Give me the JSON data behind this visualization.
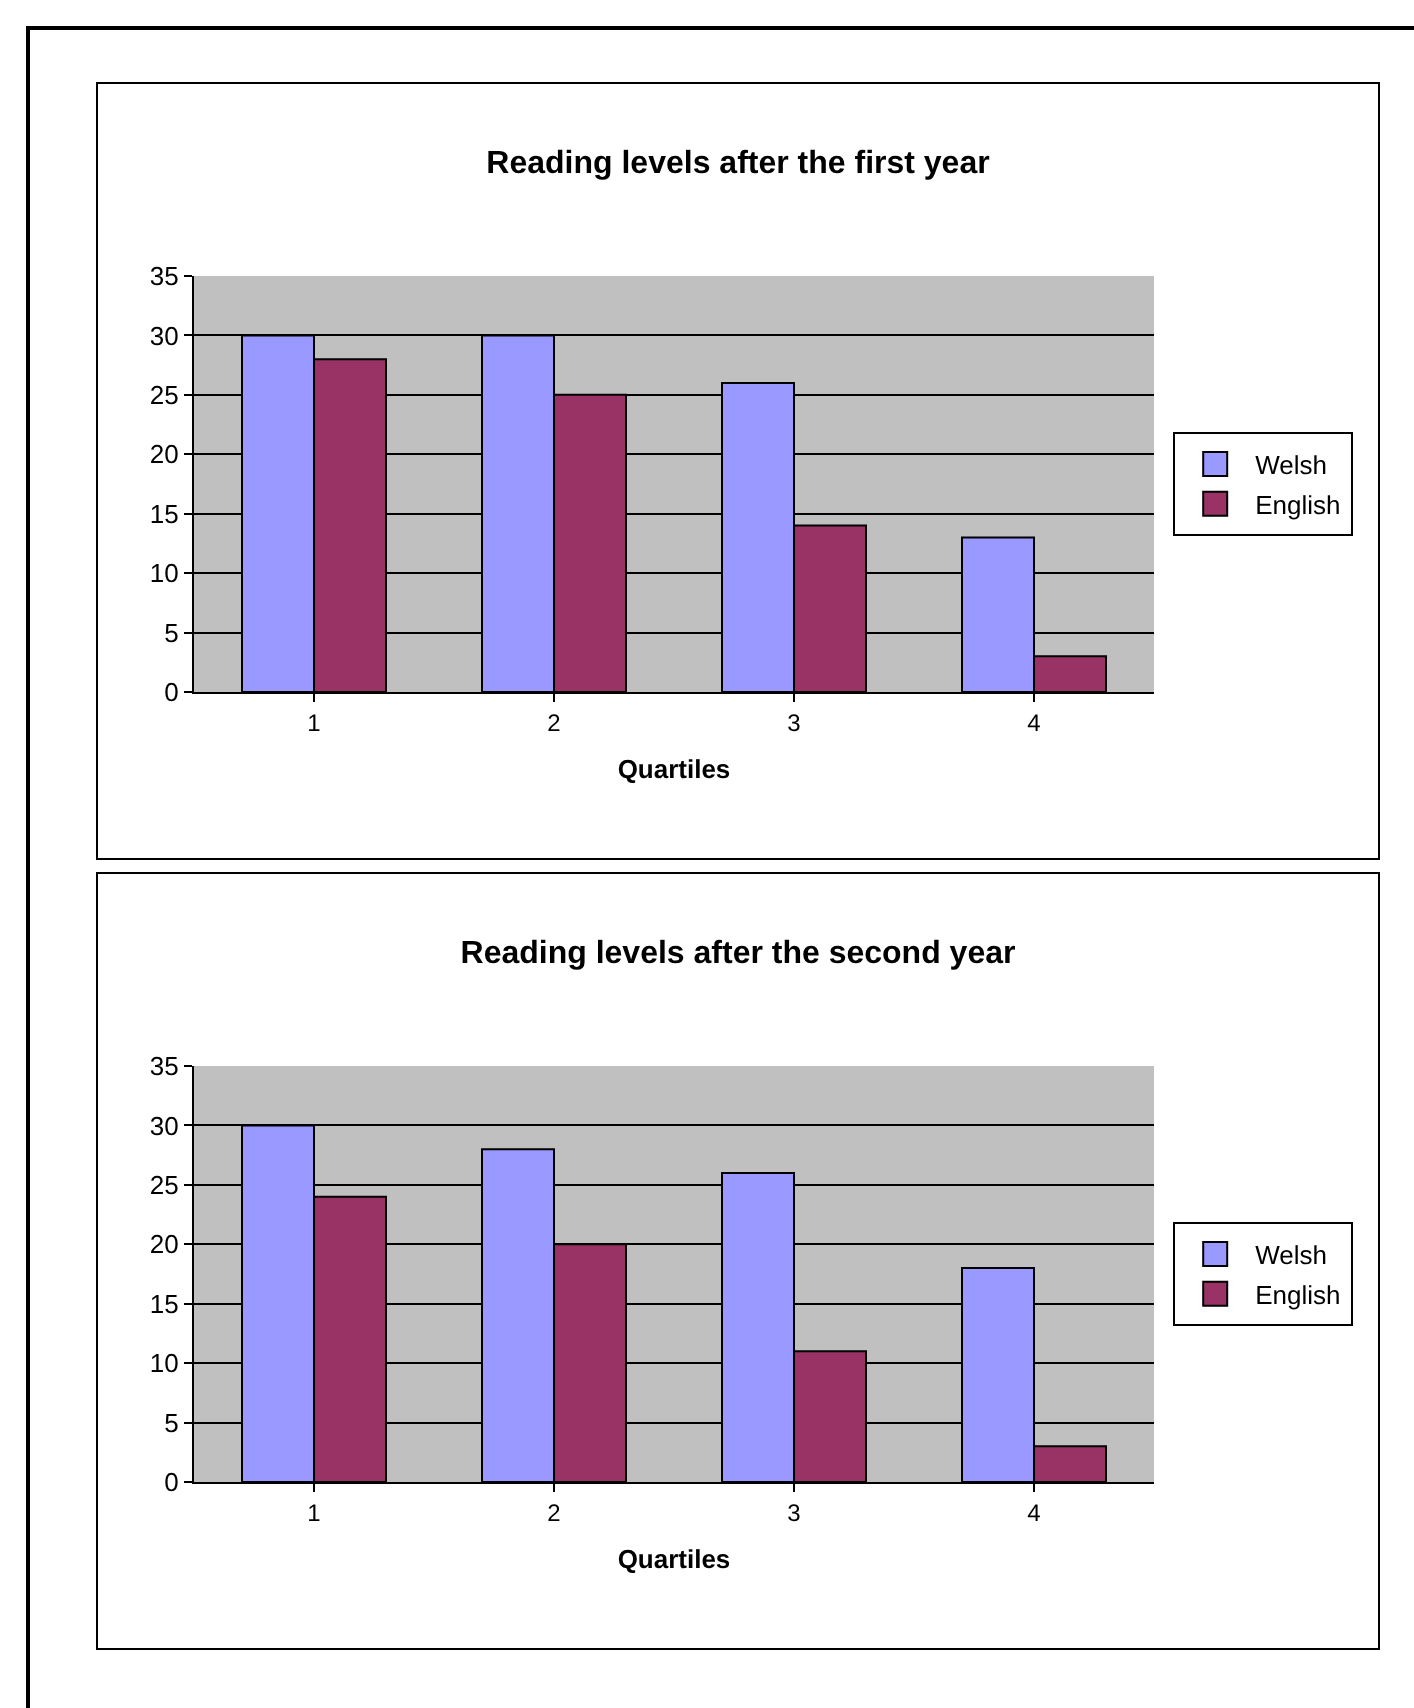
{
  "chart_data": [
    {
      "type": "bar",
      "title": "Reading levels after the first year",
      "xlabel": "Quartiles",
      "categories": [
        "1",
        "2",
        "3",
        "4"
      ],
      "series": [
        {
          "name": "Welsh",
          "color": "#9999ff",
          "values": [
            30,
            30,
            26,
            13
          ]
        },
        {
          "name": "English",
          "color": "#993366",
          "values": [
            28,
            25,
            14,
            3
          ]
        }
      ],
      "ylim": [
        0,
        35
      ],
      "yticks": [
        0,
        5,
        10,
        15,
        20,
        25,
        30,
        35
      ],
      "grid": "y",
      "legend": "right"
    },
    {
      "type": "bar",
      "title": "Reading levels after the second year",
      "xlabel": "Quartiles",
      "categories": [
        "1",
        "2",
        "3",
        "4"
      ],
      "series": [
        {
          "name": "Welsh",
          "color": "#9999ff",
          "values": [
            30,
            28,
            26,
            18
          ]
        },
        {
          "name": "English",
          "color": "#993366",
          "values": [
            24,
            20,
            11,
            3
          ]
        }
      ],
      "ylim": [
        0,
        35
      ],
      "yticks": [
        0,
        5,
        10,
        15,
        20,
        25,
        30,
        35
      ],
      "grid": "y",
      "legend": "right"
    }
  ]
}
